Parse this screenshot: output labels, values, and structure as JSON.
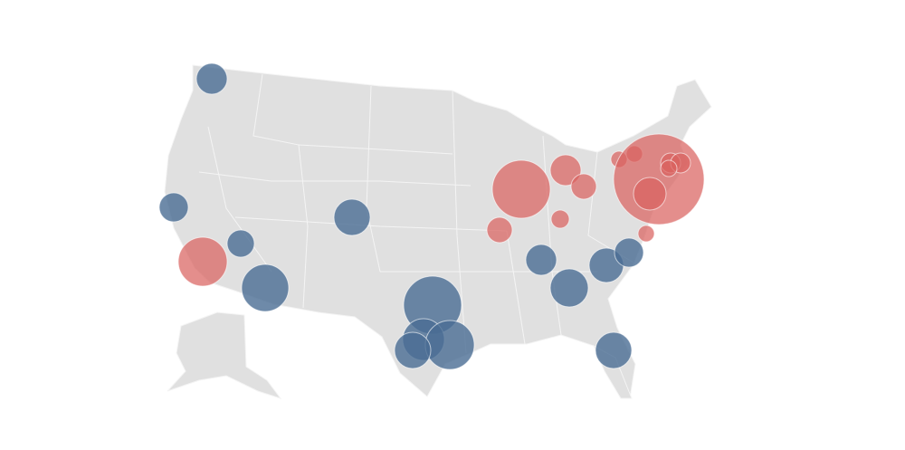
{
  "map": {
    "region": "United States",
    "land_color": "#e0e0e0",
    "border_color": "#f4f4f4",
    "background": "#ffffff"
  },
  "categories": [
    {
      "key": "blue",
      "color": "#4a6d94"
    },
    {
      "key": "red",
      "color": "#d9625f"
    }
  ],
  "bubble_count": {
    "blue": 14,
    "red": 14
  }
}
